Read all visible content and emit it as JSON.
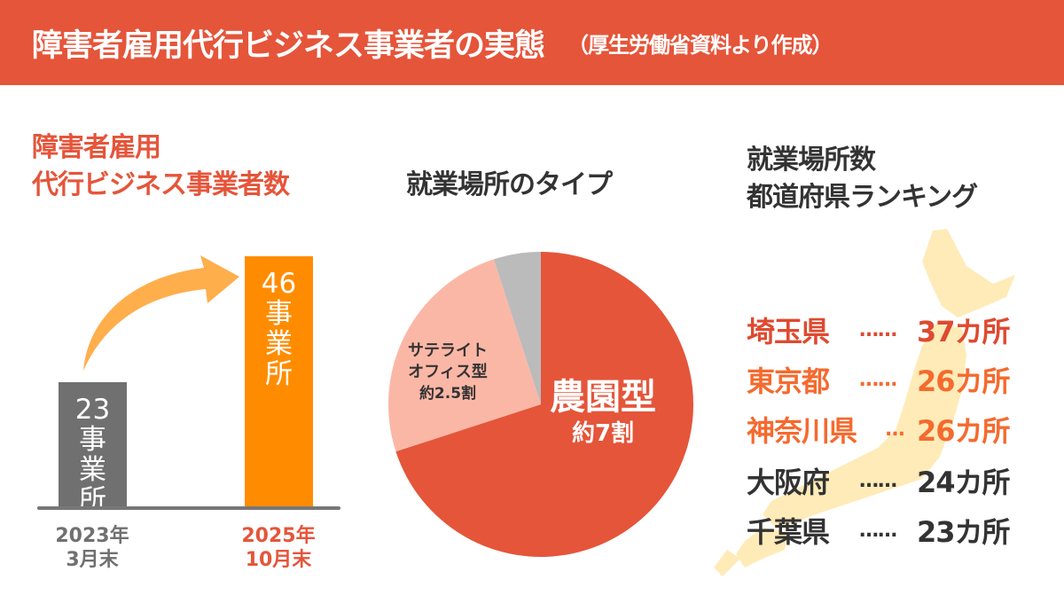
{
  "header": {
    "title": "障害者雇用代行ビジネス事業者の実態",
    "source": "（厚生労働省資料より作成）"
  },
  "colors": {
    "brand": "#E5553A",
    "bar_2023": "#707070",
    "bar_2025": "#FF8C00",
    "arrow": "#FFAE4C",
    "pie_farm": "#E5553A",
    "pie_satellite": "#FBB7A6",
    "pie_other": "#BBBBBB",
    "rank_top": "#DE4A30",
    "rank_orange": "#F56A2E",
    "rank_dark": "#333333",
    "map": "#FEEBB8"
  },
  "chart_data": [
    {
      "type": "bar",
      "title_line1": "障害者雇用",
      "title_line2": "代行ビジネス事業者数",
      "categories": [
        {
          "year": "2023年",
          "month": "3月末"
        },
        {
          "year": "2025年",
          "month": "10月末"
        }
      ],
      "values": [
        23,
        46
      ],
      "value_labels": [
        {
          "num": "23",
          "unit": "事業所"
        },
        {
          "num": "46",
          "unit": "事業所"
        }
      ],
      "growth_arrow_icon": "curved-arrow-up-right"
    },
    {
      "type": "pie",
      "title": "就業場所のタイプ",
      "slices": [
        {
          "name": "農園型",
          "label": "約7割",
          "value": 70
        },
        {
          "name_line1": "サテライト",
          "name_line2": "オフィス型",
          "label": "約2.5割",
          "value": 25
        },
        {
          "value": 5
        }
      ]
    },
    {
      "type": "table",
      "title_line1": "就業場所数",
      "title_line2": "都道府県ランキング",
      "background_icon": "japan-map",
      "rows": [
        {
          "pref": "埼玉県",
          "dots": "……",
          "count": "37カ所",
          "value": 37
        },
        {
          "pref": "東京都",
          "dots": "……",
          "count": "26カ所",
          "value": 26
        },
        {
          "pref": "神奈川県",
          "dots": "…",
          "count": "26カ所",
          "value": 26
        },
        {
          "pref": "大阪府",
          "dots": "……",
          "count": "24カ所",
          "value": 24
        },
        {
          "pref": "千葉県",
          "dots": "……",
          "count": "23カ所",
          "value": 23
        }
      ]
    }
  ]
}
